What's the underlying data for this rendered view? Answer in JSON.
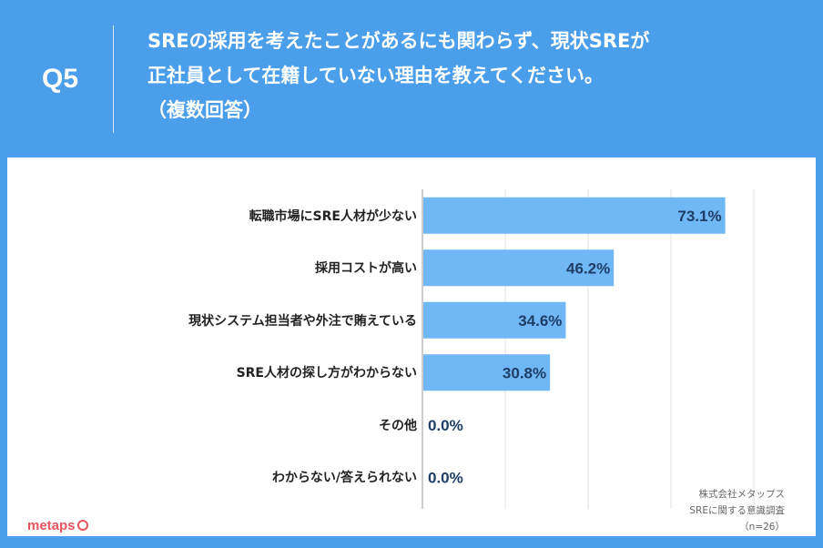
{
  "header": {
    "question_number": "Q5",
    "question_lines": [
      "SREの採用を考えたことがあるにも関わらず、現状SREが",
      "正社員として在籍していない理由を教えてください。",
      "（複数回答）"
    ]
  },
  "footer": {
    "credit_lines": [
      "株式会社メタップス",
      "SREに関する意識調査",
      "（n=26）"
    ],
    "logo_text": "metaps"
  },
  "colors": {
    "bar": "#6fb7f5",
    "header": "#4a9eea",
    "value_text": "#1f3e66"
  },
  "chart_data": {
    "type": "bar",
    "orientation": "horizontal",
    "categories": [
      "転職市場にSRE人材が少ない",
      "採用コストが高い",
      "現状システム担当者や外注で賄えている",
      "SRE人材の探し方がわからない",
      "その他",
      "わからない/答えられない"
    ],
    "values": [
      73.1,
      46.2,
      34.6,
      30.8,
      0.0,
      0.0
    ],
    "value_labels": [
      "73.1%",
      "46.2%",
      "34.6%",
      "30.8%",
      "0.0%",
      "0.0%"
    ],
    "xlim": [
      0,
      100
    ],
    "grid": true,
    "title": "",
    "xlabel": "",
    "ylabel": ""
  }
}
